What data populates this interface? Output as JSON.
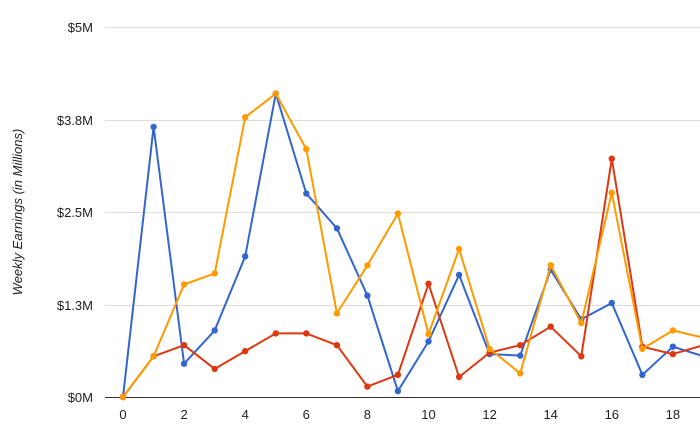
{
  "chart_data": {
    "type": "line",
    "title": "",
    "xlabel": "",
    "ylabel": "Weekly Earnings (in Millions)",
    "xlim": [
      -0.5,
      19
    ],
    "ylim": [
      0,
      5
    ],
    "x_ticks": [
      0,
      2,
      4,
      6,
      8,
      10,
      12,
      14,
      16,
      18
    ],
    "y_ticks": [
      0,
      1.25,
      2.5,
      3.75,
      5
    ],
    "y_tick_labels": [
      "$0M",
      "$1.3M",
      "$2.5M",
      "$3.8M",
      "$5M"
    ],
    "grid": true,
    "legend": "none",
    "x": [
      0,
      1,
      2,
      3,
      4,
      5,
      6,
      7,
      8,
      9,
      10,
      11,
      12,
      13,
      14,
      15,
      16,
      17,
      18,
      19
    ],
    "series": [
      {
        "color": "#3366cc",
        "values": [
          0,
          3.65,
          0.45,
          0.9,
          1.9,
          4.1,
          2.75,
          2.28,
          1.37,
          0.08,
          0.75,
          1.65,
          0.58,
          0.56,
          1.72,
          1.05,
          1.27,
          0.3,
          0.68,
          0.55
        ]
      },
      {
        "color": "#dc3912",
        "values": [
          0,
          0.55,
          0.7,
          0.38,
          0.62,
          0.86,
          0.86,
          0.7,
          0.14,
          0.3,
          1.53,
          0.27,
          0.6,
          0.7,
          0.95,
          0.55,
          3.22,
          0.68,
          0.58,
          0.7
        ]
      },
      {
        "color": "#ff9900",
        "values": [
          0,
          0.55,
          1.52,
          1.67,
          3.78,
          4.1,
          3.35,
          1.13,
          1.78,
          2.48,
          0.85,
          2.0,
          0.65,
          0.32,
          1.78,
          1.0,
          2.76,
          0.65,
          0.9,
          0.8
        ]
      }
    ]
  }
}
